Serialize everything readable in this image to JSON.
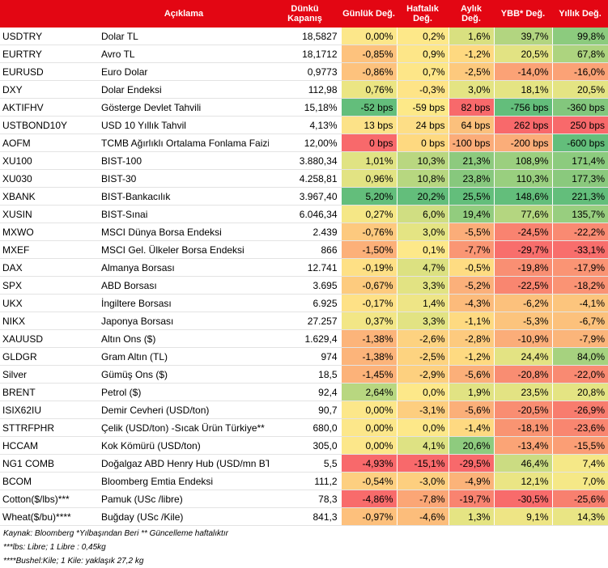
{
  "headers": [
    "",
    "Açıklama",
    "Dünkü Kapanış",
    "Günlük Değ.",
    "Haftalık Değ.",
    "Aylık Değ.",
    "YBB* Değ.",
    "Yıllık Değ."
  ],
  "rows": [
    {
      "code": "USDTRY",
      "desc": "Dolar TL",
      "close": "18,5827",
      "vals": [
        "0,00%",
        "0,2%",
        "1,6%",
        "39,7%",
        "99,8%"
      ],
      "colors": [
        "#fce78a",
        "#fde889",
        "#d9e080",
        "#b2d580",
        "#8ccb7e"
      ]
    },
    {
      "code": "EURTRY",
      "desc": "Avro TL",
      "close": "18,1712",
      "vals": [
        "-0,85%",
        "0,9%",
        "-1,2%",
        "20,5%",
        "67,8%"
      ],
      "colors": [
        "#fdc27d",
        "#fde688",
        "#fed980",
        "#e2e383",
        "#add47f"
      ]
    },
    {
      "code": "EURUSD",
      "desc": "Euro Dolar",
      "close": "0,9773",
      "vals": [
        "-0,86%",
        "0,7%",
        "-2,5%",
        "-14,0%",
        "-16,0%"
      ],
      "colors": [
        "#fdc27d",
        "#fde688",
        "#fdc97d",
        "#fba276",
        "#fba276"
      ]
    },
    {
      "code": "DXY",
      "desc": "Dolar Endeksi",
      "close": "112,98",
      "vals": [
        "0,76%",
        "-0,3%",
        "3,0%",
        "18,1%",
        "20,5%"
      ],
      "colors": [
        "#ebe583",
        "#fee487",
        "#e4e483",
        "#e4e483",
        "#e4e483"
      ]
    },
    {
      "code": "AKTIFHV",
      "desc": "Gösterge Devlet Tahvili",
      "close": "15,18%",
      "vals": [
        "-52 bps",
        "-59 bps",
        "82 bps",
        "-756 bps",
        "-360 bps"
      ],
      "colors": [
        "#63be7b",
        "#fde988",
        "#f8696b",
        "#63be7b",
        "#83c77d"
      ]
    },
    {
      "code": "USTBOND10Y",
      "desc": "USD 10 Yıllık Tahvil",
      "close": "4,13%",
      "vals": [
        "13 bps",
        "24 bps",
        "64 bps",
        "262 bps",
        "250 bps"
      ],
      "colors": [
        "#fce288",
        "#fdde86",
        "#fbc07c",
        "#f8696b",
        "#f8696b"
      ]
    },
    {
      "code": "AOFM",
      "desc": "TCMB Ağırlıklı Ortalama Fonlama Faizi",
      "close": "12,00%",
      "vals": [
        "0 bps",
        "0 bps",
        "-100 bps",
        "-200 bps",
        "-600 bps"
      ],
      "colors": [
        "#f8696b",
        "#fed980",
        "#fbac79",
        "#fbad79",
        "#63be7b"
      ]
    },
    {
      "code": "XU100",
      "desc": "BIST-100",
      "close": "3.880,34",
      "vals": [
        "1,01%",
        "10,3%",
        "21,3%",
        "108,9%",
        "171,4%"
      ],
      "colors": [
        "#e0e383",
        "#b9d780",
        "#8dca7e",
        "#9bcf7f",
        "#8ccb7e"
      ]
    },
    {
      "code": "XU030",
      "desc": "BIST-30",
      "close": "4.258,81",
      "vals": [
        "0,96%",
        "10,8%",
        "23,8%",
        "110,3%",
        "177,3%"
      ],
      "colors": [
        "#e2e383",
        "#b7d780",
        "#87c87d",
        "#99cf7f",
        "#8ac97d"
      ]
    },
    {
      "code": "XBANK",
      "desc": "BIST-Bankacılık",
      "close": "3.967,40",
      "vals": [
        "5,20%",
        "20,2%",
        "25,5%",
        "148,6%",
        "221,3%"
      ],
      "colors": [
        "#63be7b",
        "#63be7b",
        "#63be7b",
        "#63be7b",
        "#63be7b"
      ]
    },
    {
      "code": "XUSIN",
      "desc": "BIST-Sınai",
      "close": "6.046,34",
      "vals": [
        "0,27%",
        "6,0%",
        "19,4%",
        "77,6%",
        "135,7%"
      ],
      "colors": [
        "#f5e786",
        "#d0de82",
        "#92cc7e",
        "#b4d680",
        "#98ce7f"
      ]
    },
    {
      "code": "MXWO",
      "desc": "MSCI Dünya Borsa Endeksi",
      "close": "2.439",
      "vals": [
        "-0,76%",
        "3,0%",
        "-5,5%",
        "-24,5%",
        "-22,2%"
      ],
      "colors": [
        "#fdc97e",
        "#e4e483",
        "#fbad79",
        "#f98370",
        "#f98a72"
      ]
    },
    {
      "code": "MXEF",
      "desc": "MSCI Gel. Ülkeler Borsa Endeksi",
      "close": "866",
      "vals": [
        "-1,50%",
        "0,1%",
        "-7,7%",
        "-29,7%",
        "-33,1%"
      ],
      "colors": [
        "#fcb079",
        "#fde889",
        "#fa9674",
        "#f86e6c",
        "#f86e6c"
      ]
    },
    {
      "code": "DAX",
      "desc": "Almanya Borsası",
      "close": "12.741",
      "vals": [
        "-0,19%",
        "4,7%",
        "-0,5%",
        "-19,8%",
        "-17,9%"
      ],
      "colors": [
        "#fee085",
        "#dce181",
        "#fedc82",
        "#f98f73",
        "#fa9474"
      ]
    },
    {
      "code": "SPX",
      "desc": "ABD Borsası",
      "close": "3.695",
      "vals": [
        "-0,67%",
        "3,3%",
        "-5,2%",
        "-22,5%",
        "-18,2%"
      ],
      "colors": [
        "#fdcb7e",
        "#e2e383",
        "#fbb07a",
        "#f98670",
        "#fa9374"
      ]
    },
    {
      "code": "UKX",
      "desc": "İngiltere Borsası",
      "close": "6.925",
      "vals": [
        "-0,17%",
        "1,4%",
        "-4,3%",
        "-6,2%",
        "-4,1%"
      ],
      "colors": [
        "#fee186",
        "#eee586",
        "#fcbb7b",
        "#fcc17c",
        "#fcc57d"
      ]
    },
    {
      "code": "NIKX",
      "desc": "Japonya Borsası",
      "close": "27.257",
      "vals": [
        "0,37%",
        "3,3%",
        "-1,1%",
        "-5,3%",
        "-6,7%"
      ],
      "colors": [
        "#f2e686",
        "#e2e383",
        "#feda81",
        "#fcc47d",
        "#fcc17c"
      ]
    },
    {
      "code": "XAUUSD",
      "desc": "Altın Ons ($)",
      "close": "1.629,4",
      "vals": [
        "-1,38%",
        "-2,6%",
        "-2,8%",
        "-10,9%",
        "-7,9%"
      ],
      "colors": [
        "#fcb47a",
        "#fdd280",
        "#fdca7e",
        "#fbad79",
        "#fbb57a"
      ]
    },
    {
      "code": "GLDGR",
      "desc": "Gram Altın (TL)",
      "close": "974",
      "vals": [
        "-1,38%",
        "-2,5%",
        "-1,2%",
        "24,4%",
        "84,0%"
      ],
      "colors": [
        "#fcb47a",
        "#fdd380",
        "#feda81",
        "#e3e383",
        "#a6d27f"
      ]
    },
    {
      "code": "Silver",
      "desc": "Gümüş Ons ($)",
      "close": "18,5",
      "vals": [
        "-1,45%",
        "-2,9%",
        "-5,6%",
        "-20,8%",
        "-22,0%"
      ],
      "colors": [
        "#fcb279",
        "#fdd07f",
        "#fbaf79",
        "#f98d72",
        "#f98a72"
      ]
    },
    {
      "code": "BRENT",
      "desc": "Petrol ($)",
      "close": "92,4",
      "vals": [
        "2,64%",
        "0,0%",
        "1,9%",
        "23,5%",
        "20,8%"
      ],
      "colors": [
        "#b8d780",
        "#fde889",
        "#e1e383",
        "#e3e383",
        "#e4e483"
      ]
    },
    {
      "code": "ISIX62IU",
      "desc": "Demir Cevheri (USD/ton)",
      "close": "90,7",
      "vals": [
        "0,00%",
        "-3,1%",
        "-5,6%",
        "-20,5%",
        "-26,9%"
      ],
      "colors": [
        "#fce78a",
        "#fdce7f",
        "#fbaf79",
        "#f98d72",
        "#f87c6e"
      ]
    },
    {
      "code": "STTRFPHR",
      "desc": "Çelik (USD/ton) -Sıcak Ürün Türkiye**",
      "close": "680,0",
      "vals": [
        "0,00%",
        "0,0%",
        "-1,4%",
        "-18,1%",
        "-23,6%"
      ],
      "colors": [
        "#fce78a",
        "#fde889",
        "#fed981",
        "#f99472",
        "#f98670"
      ]
    },
    {
      "code": "HCCAM",
      "desc": "Kok Kömürü (USD/ton)",
      "close": "305,0",
      "vals": [
        "0,00%",
        "4,1%",
        "20,6%",
        "-13,4%",
        "-15,5%"
      ],
      "colors": [
        "#fce78a",
        "#dee283",
        "#8ecb7e",
        "#fba476",
        "#fb9e75"
      ]
    },
    {
      "code": "NG1 COMB",
      "desc": "Doğalgaz ABD Henry Hub (USD/mn BTU)",
      "close": "5,5",
      "vals": [
        "-4,93%",
        "-15,1%",
        "-29,5%",
        "46,4%",
        "7,4%"
      ],
      "colors": [
        "#f8696b",
        "#f8696b",
        "#f8696b",
        "#cbdc82",
        "#f5e887"
      ]
    },
    {
      "code": "BCOM",
      "desc": "Bloomberg Emtia Endeksi",
      "close": "111,2",
      "vals": [
        "-0,54%",
        "-3,0%",
        "-4,9%",
        "12,1%",
        "7,0%"
      ],
      "colors": [
        "#fdcf80",
        "#fdcf7f",
        "#fbb379",
        "#eae584",
        "#f5e887"
      ]
    },
    {
      "code": "Cotton($/lbs)***",
      "desc": "Pamuk (USc /libre)",
      "close": "78,3",
      "vals": [
        "-4,86%",
        "-7,8%",
        "-19,7%",
        "-30,5%",
        "-25,6%"
      ],
      "colors": [
        "#f86b6b",
        "#fba676",
        "#f98370",
        "#f86b6b",
        "#f8806f"
      ]
    },
    {
      "code": "Wheat($/bu)****",
      "desc": "Buğday (USc /Kile)",
      "close": "841,3",
      "vals": [
        "-0,97%",
        "-4,6%",
        "1,3%",
        "9,1%",
        "14,3%"
      ],
      "colors": [
        "#fdc07c",
        "#fcbd7b",
        "#e5e483",
        "#eee585",
        "#e9e584"
      ]
    }
  ],
  "notes": [
    "Kaynak: Bloomberg *Yılbaşından Beri  ** Güncelleme haftalıktır",
    "***lbs: Libre; 1 Libre : 0,45kg",
    "****Bushel:Kile; 1 Kile: yaklaşık 27,2 kg"
  ]
}
